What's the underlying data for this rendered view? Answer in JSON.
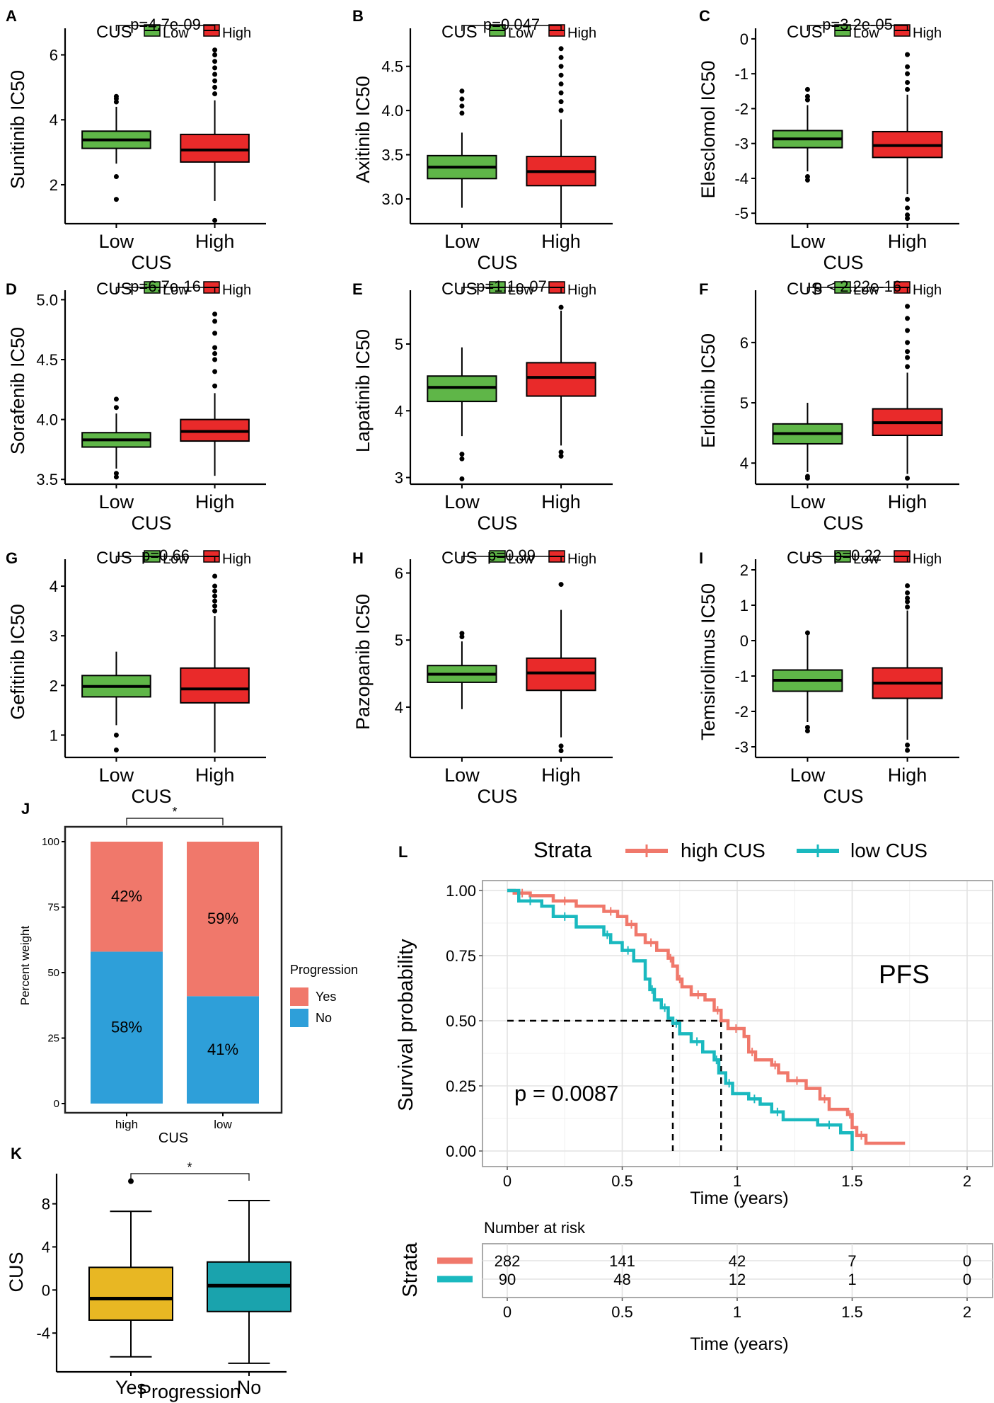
{
  "chart_data": [
    {
      "panel": "A",
      "type": "boxplot",
      "xlabel": "CUS",
      "ylabel": "Sunitinib IC50",
      "legend": {
        "title": "CUS",
        "entries": [
          "Low",
          "High"
        ]
      },
      "categories": [
        "Low",
        "High"
      ],
      "ylim": [
        0.8,
        6.6
      ],
      "yticks": [
        2,
        4,
        6
      ],
      "p_label": "p=4.7e-09",
      "boxes": [
        {
          "q1": 3.12,
          "median": 3.38,
          "q3": 3.65,
          "lo": 2.65,
          "hi": 4.4,
          "outliers": [
            4.55,
            4.65,
            4.72,
            2.25,
            1.55
          ]
        },
        {
          "q1": 2.7,
          "median": 3.07,
          "q3": 3.55,
          "lo": 1.5,
          "hi": 4.6,
          "outliers": [
            4.8,
            5.0,
            5.2,
            5.4,
            5.6,
            5.8,
            6.0,
            6.15,
            0.9
          ]
        }
      ]
    },
    {
      "panel": "B",
      "type": "boxplot",
      "xlabel": "CUS",
      "ylabel": "Axitinib IC50",
      "legend": {
        "title": "CUS",
        "entries": [
          "Low",
          "High"
        ]
      },
      "categories": [
        "Low",
        "High"
      ],
      "ylim": [
        2.72,
        4.85
      ],
      "yticks": [
        3.0,
        3.5,
        4.0,
        4.5
      ],
      "tick_decimals": 1,
      "p_label": "p=0.047",
      "boxes": [
        {
          "q1": 3.23,
          "median": 3.36,
          "q3": 3.49,
          "lo": 2.9,
          "hi": 3.75,
          "outliers": [
            3.97,
            4.05,
            4.13,
            4.22
          ]
        },
        {
          "q1": 3.15,
          "median": 3.31,
          "q3": 3.48,
          "lo": 2.72,
          "hi": 3.9,
          "outliers": [
            4.0,
            4.1,
            4.2,
            4.3,
            4.4,
            4.5,
            4.6,
            4.7
          ]
        }
      ]
    },
    {
      "panel": "C",
      "type": "boxplot",
      "xlabel": "CUS",
      "ylabel": "Elesclomol IC50",
      "legend": {
        "title": "CUS",
        "entries": [
          "Low",
          "High"
        ]
      },
      "categories": [
        "Low",
        "High"
      ],
      "ylim": [
        -5.3,
        0.1
      ],
      "yticks": [
        -5,
        -4,
        -3,
        -2,
        -1,
        0
      ],
      "p_label": "p=3.2e-05",
      "boxes": [
        {
          "q1": -3.12,
          "median": -2.87,
          "q3": -2.63,
          "lo": -3.8,
          "hi": -1.9,
          "outliers": [
            -1.75,
            -1.65,
            -1.45,
            -3.95,
            -4.05
          ]
        },
        {
          "q1": -3.4,
          "median": -3.06,
          "q3": -2.66,
          "lo": -4.45,
          "hi": -1.6,
          "outliers": [
            -1.45,
            -1.25,
            -1.0,
            -0.8,
            -0.45,
            -4.6,
            -4.85,
            -5.05,
            -5.15
          ]
        }
      ]
    },
    {
      "panel": "D",
      "type": "boxplot",
      "xlabel": "CUS",
      "ylabel": "Sorafenib IC50",
      "legend": {
        "title": "CUS",
        "entries": [
          "Low",
          "High"
        ]
      },
      "categories": [
        "Low",
        "High"
      ],
      "ylim": [
        3.46,
        5.02
      ],
      "yticks": [
        3.5,
        4.0,
        4.5,
        5.0
      ],
      "tick_decimals": 1,
      "p_label": "p=6.7e-16",
      "boxes": [
        {
          "q1": 3.77,
          "median": 3.83,
          "q3": 3.89,
          "lo": 3.59,
          "hi": 4.05,
          "outliers": [
            4.1,
            4.17,
            3.55,
            3.52
          ]
        },
        {
          "q1": 3.82,
          "median": 3.9,
          "q3": 4.0,
          "lo": 3.53,
          "hi": 4.22,
          "outliers": [
            4.28,
            4.4,
            4.5,
            4.55,
            4.6,
            4.72,
            4.82,
            4.88
          ]
        }
      ]
    },
    {
      "panel": "E",
      "type": "boxplot",
      "xlabel": "CUS",
      "ylabel": "Lapatinib IC50",
      "legend": {
        "title": "CUS",
        "entries": [
          "Low",
          "High"
        ]
      },
      "categories": [
        "Low",
        "High"
      ],
      "ylim": [
        2.9,
        5.7
      ],
      "yticks": [
        3,
        4,
        5
      ],
      "p_label": "p=1.1e-07",
      "boxes": [
        {
          "q1": 4.14,
          "median": 4.35,
          "q3": 4.52,
          "lo": 3.62,
          "hi": 4.95,
          "outliers": [
            3.35,
            3.28,
            2.98
          ]
        },
        {
          "q1": 4.22,
          "median": 4.5,
          "q3": 4.72,
          "lo": 3.48,
          "hi": 5.5,
          "outliers": [
            3.38,
            3.32,
            5.55
          ]
        }
      ]
    },
    {
      "panel": "F",
      "type": "boxplot",
      "xlabel": "CUS",
      "ylabel": "Erlotinib IC50",
      "legend": {
        "title": "CUS",
        "entries": [
          "Low",
          "High"
        ]
      },
      "categories": [
        "Low",
        "High"
      ],
      "ylim": [
        3.65,
        6.75
      ],
      "yticks": [
        4,
        5,
        6
      ],
      "p_label": "p < 2.22e-16",
      "boxes": [
        {
          "q1": 4.32,
          "median": 4.49,
          "q3": 4.65,
          "lo": 3.85,
          "hi": 5.0,
          "outliers": [
            3.78,
            3.75
          ]
        },
        {
          "q1": 4.46,
          "median": 4.67,
          "q3": 4.9,
          "lo": 3.82,
          "hi": 5.5,
          "outliers": [
            5.6,
            5.75,
            5.85,
            6.0,
            6.2,
            6.4,
            6.6,
            3.75
          ]
        }
      ]
    },
    {
      "panel": "G",
      "type": "boxplot",
      "xlabel": "CUS",
      "ylabel": "Gefitinib IC50",
      "legend": {
        "title": "CUS",
        "entries": [
          "Low",
          "High"
        ]
      },
      "categories": [
        "Low",
        "High"
      ],
      "ylim": [
        0.55,
        4.4
      ],
      "yticks": [
        1,
        2,
        3,
        4
      ],
      "p_label": "p=0.66",
      "boxes": [
        {
          "q1": 1.77,
          "median": 1.98,
          "q3": 2.2,
          "lo": 1.2,
          "hi": 2.68,
          "outliers": [
            1.0,
            0.7
          ]
        },
        {
          "q1": 1.65,
          "median": 1.93,
          "q3": 2.35,
          "lo": 0.65,
          "hi": 3.4,
          "outliers": [
            3.5,
            3.6,
            3.7,
            3.8,
            3.9,
            4.0,
            4.2
          ]
        }
      ]
    },
    {
      "panel": "H",
      "type": "boxplot",
      "xlabel": "CUS",
      "ylabel": "Pazopanib IC50",
      "legend": {
        "title": "CUS",
        "entries": [
          "Low",
          "High"
        ]
      },
      "categories": [
        "Low",
        "High"
      ],
      "ylim": [
        3.25,
        6.1
      ],
      "yticks": [
        4,
        5,
        6
      ],
      "p_label": "p=0.99",
      "boxes": [
        {
          "q1": 4.37,
          "median": 4.49,
          "q3": 4.62,
          "lo": 3.97,
          "hi": 4.98,
          "outliers": [
            5.05,
            5.1
          ]
        },
        {
          "q1": 4.25,
          "median": 4.51,
          "q3": 4.73,
          "lo": 3.55,
          "hi": 5.45,
          "outliers": [
            3.42,
            3.35,
            5.83
          ]
        }
      ]
    },
    {
      "panel": "I",
      "type": "boxplot",
      "xlabel": "CUS",
      "ylabel": "Temsirolimus IC50",
      "legend": {
        "title": "CUS",
        "entries": [
          "Low",
          "High"
        ]
      },
      "categories": [
        "Low",
        "High"
      ],
      "ylim": [
        -3.3,
        2.1
      ],
      "yticks": [
        -3,
        -2,
        -1,
        0,
        1,
        2
      ],
      "p_label": "p=0.22",
      "boxes": [
        {
          "q1": -1.43,
          "median": -1.12,
          "q3": -0.83,
          "lo": -2.3,
          "hi": 0.15,
          "outliers": [
            0.22,
            -2.45,
            -2.55
          ]
        },
        {
          "q1": -1.63,
          "median": -1.2,
          "q3": -0.77,
          "lo": -2.8,
          "hi": 0.85,
          "outliers": [
            0.95,
            1.1,
            1.2,
            1.35,
            1.55,
            -2.95,
            -3.1
          ]
        }
      ]
    },
    {
      "panel": "J",
      "type": "stacked-bar",
      "xlabel": "CUS",
      "ylabel": "Percent weight",
      "categories": [
        "high",
        "low"
      ],
      "ylim": [
        0,
        100
      ],
      "yticks": [
        0,
        25,
        50,
        75,
        100
      ],
      "series": [
        {
          "name": "No",
          "color": "#2e9fd9",
          "values": [
            58,
            41
          ],
          "labels": [
            "58%",
            "41%"
          ]
        },
        {
          "name": "Yes",
          "color": "#f0786b",
          "values": [
            42,
            59
          ],
          "labels": [
            "42%",
            "59%"
          ]
        }
      ],
      "legend": {
        "title": "Progression",
        "entries": [
          "Yes",
          "No"
        ]
      },
      "sig_label": "*"
    },
    {
      "panel": "K",
      "type": "boxplot",
      "xlabel": "Progression",
      "ylabel": "CUS",
      "categories": [
        "Yes",
        "No"
      ],
      "ylim": [
        -7.6,
        10.8
      ],
      "yticks": [
        -4,
        0,
        4,
        8
      ],
      "sig_label": "*",
      "colors": [
        "#e8b723",
        "#1aa3ad"
      ],
      "boxes": [
        {
          "q1": -2.8,
          "median": -0.8,
          "q3": 2.1,
          "lo": -6.2,
          "hi": 7.3,
          "outliers": [
            10.1
          ]
        },
        {
          "q1": -2.0,
          "median": 0.4,
          "q3": 2.6,
          "lo": -6.8,
          "hi": 8.3,
          "outliers": []
        }
      ]
    },
    {
      "panel": "L",
      "type": "kaplan-meier",
      "xlabel": "Time (years)",
      "ylabel": "Survival probability",
      "xlim": [
        0,
        2
      ],
      "xticks": [
        0,
        0.5,
        1,
        1.5,
        2
      ],
      "ylim": [
        0,
        1
      ],
      "yticks": [
        0,
        0.25,
        0.5,
        0.75,
        1.0
      ],
      "legend": {
        "title": "Strata",
        "entries": [
          "high CUS",
          "low CUS"
        ]
      },
      "annotation": "PFS",
      "p_label": "p = 0.0087",
      "medians": [
        0.93,
        0.72
      ],
      "series": [
        {
          "name": "high CUS",
          "color": "#f0786b",
          "steps": [
            [
              0,
              1.0
            ],
            [
              0.03,
              0.99
            ],
            [
              0.1,
              0.98
            ],
            [
              0.2,
              0.96
            ],
            [
              0.3,
              0.94
            ],
            [
              0.42,
              0.92
            ],
            [
              0.48,
              0.9
            ],
            [
              0.52,
              0.87
            ],
            [
              0.56,
              0.83
            ],
            [
              0.6,
              0.8
            ],
            [
              0.65,
              0.77
            ],
            [
              0.7,
              0.74
            ],
            [
              0.72,
              0.71
            ],
            [
              0.74,
              0.66
            ],
            [
              0.76,
              0.63
            ],
            [
              0.8,
              0.6
            ],
            [
              0.86,
              0.58
            ],
            [
              0.9,
              0.54
            ],
            [
              0.93,
              0.5
            ],
            [
              0.96,
              0.47
            ],
            [
              1.03,
              0.44
            ],
            [
              1.05,
              0.38
            ],
            [
              1.08,
              0.35
            ],
            [
              1.15,
              0.33
            ],
            [
              1.18,
              0.3
            ],
            [
              1.22,
              0.27
            ],
            [
              1.3,
              0.24
            ],
            [
              1.36,
              0.2
            ],
            [
              1.4,
              0.16
            ],
            [
              1.48,
              0.14
            ],
            [
              1.5,
              0.09
            ],
            [
              1.52,
              0.06
            ],
            [
              1.56,
              0.03
            ],
            [
              1.73,
              0.03
            ]
          ],
          "risk": [
            282,
            141,
            42,
            7,
            0
          ]
        },
        {
          "name": "low CUS",
          "color": "#1ab9bf",
          "steps": [
            [
              0,
              1.0
            ],
            [
              0.05,
              0.96
            ],
            [
              0.15,
              0.94
            ],
            [
              0.2,
              0.9
            ],
            [
              0.3,
              0.86
            ],
            [
              0.42,
              0.83
            ],
            [
              0.45,
              0.8
            ],
            [
              0.5,
              0.77
            ],
            [
              0.55,
              0.73
            ],
            [
              0.6,
              0.7
            ],
            [
              0.6,
              0.66
            ],
            [
              0.62,
              0.62
            ],
            [
              0.64,
              0.58
            ],
            [
              0.67,
              0.55
            ],
            [
              0.7,
              0.51
            ],
            [
              0.72,
              0.49
            ],
            [
              0.75,
              0.45
            ],
            [
              0.8,
              0.42
            ],
            [
              0.85,
              0.38
            ],
            [
              0.9,
              0.35
            ],
            [
              0.92,
              0.3
            ],
            [
              0.95,
              0.26
            ],
            [
              0.98,
              0.22
            ],
            [
              1.05,
              0.2
            ],
            [
              1.1,
              0.18
            ],
            [
              1.15,
              0.15
            ],
            [
              1.2,
              0.12
            ],
            [
              1.35,
              0.1
            ],
            [
              1.45,
              0.07
            ],
            [
              1.5,
              0.0
            ]
          ],
          "risk": [
            90,
            48,
            12,
            1,
            0
          ]
        }
      ],
      "risk_table": {
        "title": "Number at risk",
        "ylabel": "Strata",
        "xlabel": "Time (years)"
      }
    }
  ],
  "panel_letters": [
    "A",
    "B",
    "C",
    "D",
    "E",
    "F",
    "G",
    "H",
    "I",
    "J",
    "K",
    "L"
  ],
  "colors": {
    "low": "#5fb648",
    "high": "#e92a2a",
    "median": "#000000"
  }
}
